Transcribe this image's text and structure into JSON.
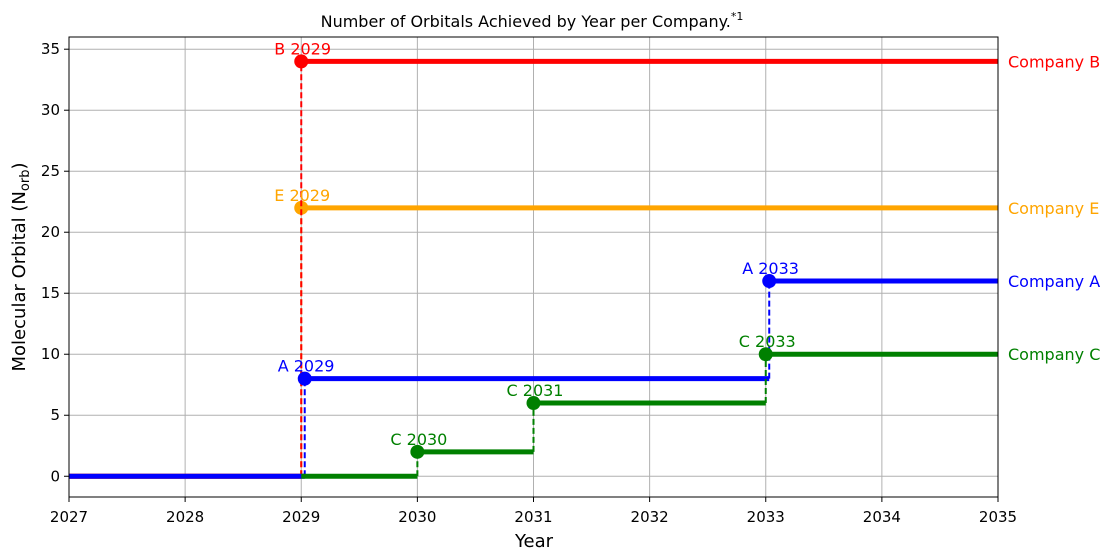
{
  "chart_data": {
    "type": "line",
    "title": "Number of Orbitals Achieved by Year per Company.",
    "title_superscript": "*1",
    "xlabel": "Year",
    "ylabel": "Molecular Orbital (N",
    "ylabel_subscript": "orb",
    "ylabel_close": ")",
    "xlim": [
      2027,
      2035
    ],
    "ylim": [
      -1.7,
      36
    ],
    "xticks": [
      2027,
      2028,
      2029,
      2030,
      2031,
      2032,
      2033,
      2034,
      2035
    ],
    "yticks": [
      0,
      5,
      10,
      15,
      20,
      25,
      30,
      35
    ],
    "grid": true,
    "step_style": "post",
    "series": [
      {
        "name": "Company E",
        "color": "#ffa500",
        "x": [
          2027,
          2029,
          2035
        ],
        "y": [
          0,
          22,
          22
        ],
        "milestones": [
          {
            "x": 2029,
            "y": 22,
            "label": "E 2029"
          }
        ]
      },
      {
        "name": "Company B",
        "color": "#ff0000",
        "x": [
          2027,
          2029,
          2035
        ],
        "y": [
          0,
          34,
          34
        ],
        "milestones": [
          {
            "x": 2029,
            "y": 34,
            "label": "B 2029"
          }
        ]
      },
      {
        "name": "Company A",
        "color": "#0000ff",
        "x": [
          2027,
          2029.03,
          2033.03,
          2035
        ],
        "y": [
          0,
          8,
          16,
          16
        ],
        "milestones": [
          {
            "x": 2029.03,
            "y": 8,
            "label": "A 2029"
          },
          {
            "x": 2033.03,
            "y": 16,
            "label": "A 2033"
          }
        ]
      },
      {
        "name": "Company C",
        "color": "#008000",
        "x": [
          2029,
          2030,
          2031,
          2033,
          2035
        ],
        "y": [
          0,
          2,
          6,
          10,
          10
        ],
        "milestones": [
          {
            "x": 2030,
            "y": 2,
            "label": "C 2030"
          },
          {
            "x": 2031,
            "y": 6,
            "label": "C 2031"
          },
          {
            "x": 2033,
            "y": 10,
            "label": "C 2033"
          }
        ]
      }
    ]
  }
}
